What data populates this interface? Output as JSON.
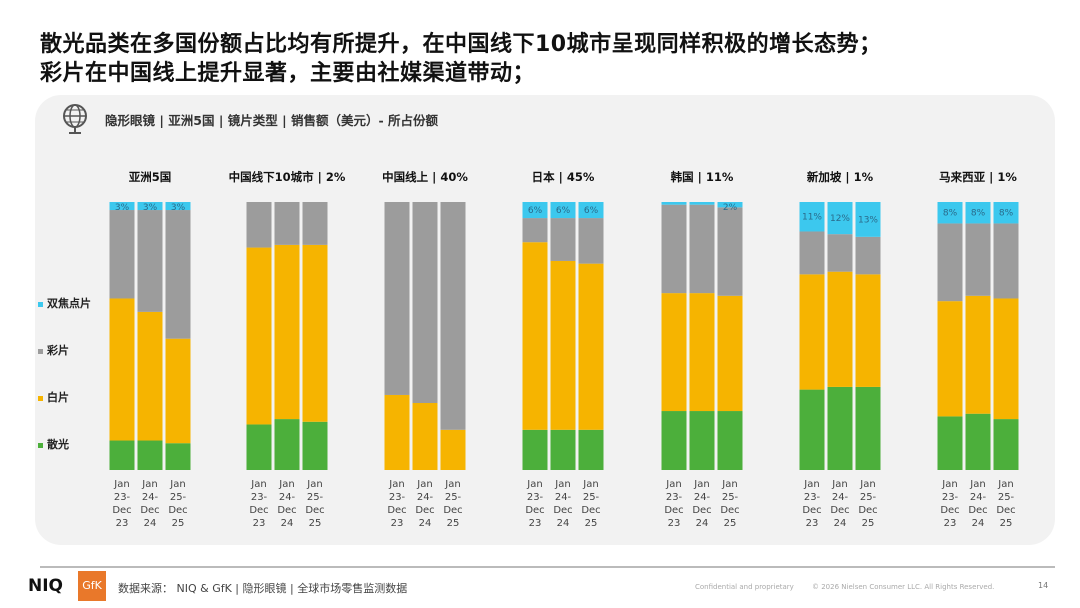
{
  "title_lines": [
    "散光品类在多国份额占比均有所提升，在中国线下10城市呈现同样积极的增长态势；",
    "彩片在中国线上提升显著，主要由社媒渠道带动；"
  ],
  "header": "隐形眼镜 | 亚洲5国 | 镜片类型 | 销售额（美元）- 所占份额",
  "colors": {
    "双焦点片": "#3cc8ee",
    "彩片": "#9c9c9c",
    "白片": "#f6b400",
    "散光": "#4caf3b"
  },
  "legend": [
    "双焦点片",
    "彩片",
    "白片",
    "散光"
  ],
  "chart_data": {
    "type": "bar",
    "stacked": true,
    "percent": true,
    "segments_bottom_to_top": [
      "散光",
      "白片",
      "彩片",
      "双焦点片"
    ],
    "periods": [
      "Jan 23- Dec 23",
      "Jan 24- Dec 24",
      "Jan 25- Dec 25"
    ],
    "groups": [
      {
        "title": "亚洲5国",
        "bars": [
          {
            "散光": 11,
            "白片": 53,
            "彩片": 33,
            "双焦点片": 3,
            "label": "3%"
          },
          {
            "散光": 11,
            "白片": 48,
            "彩片": 38,
            "双焦点片": 3,
            "label": "3%"
          },
          {
            "散光": 10,
            "白片": 39,
            "彩片": 48,
            "双焦点片": 3,
            "label": "3%"
          }
        ]
      },
      {
        "title": "中国线下10城市 | 2%",
        "bars": [
          {
            "散光": 17,
            "白片": 66,
            "彩片": 17,
            "双焦点片": 0
          },
          {
            "散光": 19,
            "白片": 65,
            "彩片": 16,
            "双焦点片": 0
          },
          {
            "散光": 18,
            "白片": 66,
            "彩片": 16,
            "双焦点片": 0
          }
        ]
      },
      {
        "title": "中国线上 | 40%",
        "bars": [
          {
            "散光": 0,
            "白片": 28,
            "彩片": 72,
            "双焦点片": 0
          },
          {
            "散光": 0,
            "白片": 25,
            "彩片": 75,
            "双焦点片": 0
          },
          {
            "散光": 0,
            "白片": 15,
            "彩片": 85,
            "双焦点片": 0
          }
        ]
      },
      {
        "title": "日本 | 45%",
        "bars": [
          {
            "散光": 15,
            "白片": 70,
            "彩片": 9,
            "双焦点片": 6,
            "label": "6%"
          },
          {
            "散光": 15,
            "白片": 63,
            "彩片": 16,
            "双焦点片": 6,
            "label": "6%"
          },
          {
            "散光": 15,
            "白片": 62,
            "彩片": 17,
            "双焦点片": 6,
            "label": "6%"
          }
        ]
      },
      {
        "title": "韩国 | 11%",
        "bars": [
          {
            "散光": 22,
            "白片": 44,
            "彩片": 33,
            "双焦点片": 1
          },
          {
            "散光": 22,
            "白片": 44,
            "彩片": 33,
            "双焦点片": 1
          },
          {
            "散光": 22,
            "白片": 43,
            "彩片": 33,
            "双焦点片": 2,
            "label": "2%"
          }
        ]
      },
      {
        "title": "新加坡 | 1%",
        "bars": [
          {
            "散光": 30,
            "白片": 43,
            "彩片": 16,
            "双焦点片": 11,
            "label": "11%"
          },
          {
            "散光": 31,
            "白片": 43,
            "彩片": 14,
            "双焦点片": 12,
            "label": "12%"
          },
          {
            "散光": 31,
            "白片": 42,
            "彩片": 14,
            "双焦点片": 13,
            "label": "13%"
          }
        ]
      },
      {
        "title": "马来西亚 | 1%",
        "bars": [
          {
            "散光": 20,
            "白片": 43,
            "彩片": 29,
            "双焦点片": 8,
            "label": "8%"
          },
          {
            "散光": 21,
            "白片": 44,
            "彩片": 27,
            "双焦点片": 8,
            "label": "8%"
          },
          {
            "散光": 19,
            "白片": 45,
            "彩片": 28,
            "双焦点片": 8,
            "label": "8%"
          }
        ]
      }
    ]
  },
  "footer": {
    "logo1": "NIQ",
    "logo2": "GfK",
    "source": "数据来源： NIQ & GfK | 隐形眼镜 | 全球市场零售监测数据",
    "confidential": "Confidential and proprietary",
    "copyright": "© 2026 Nielsen Consumer LLC. All Rights Reserved.",
    "page": "14"
  }
}
